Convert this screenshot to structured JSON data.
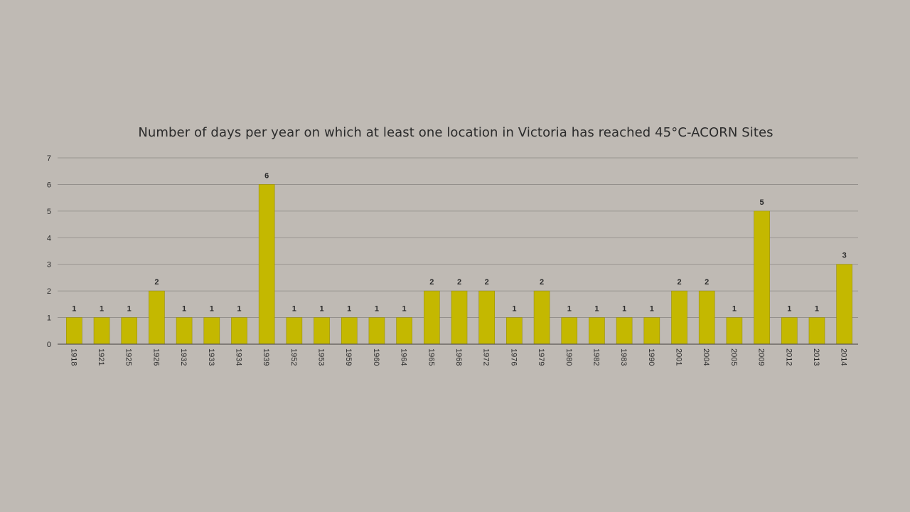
{
  "chart_data": {
    "type": "bar",
    "title": "Number of days per year on which at least one location in Victoria has reached 45°C-ACORN Sites",
    "xlabel": "",
    "ylabel": "",
    "ylim": [
      0,
      7
    ],
    "yticks": [
      "0",
      "1",
      "2",
      "3",
      "4",
      "5",
      "6",
      "7"
    ],
    "grid": true,
    "bar_color": "#c4b800",
    "bar_edge_color": "#9a9000",
    "categories": [
      "1918",
      "1921",
      "1925",
      "1926",
      "1932",
      "1933",
      "1934",
      "1939",
      "1952",
      "1953",
      "1959",
      "1960",
      "1964",
      "1965",
      "1968",
      "1972",
      "1976",
      "1979",
      "1980",
      "1982",
      "1983",
      "1990",
      "2001",
      "2004",
      "2005",
      "2009",
      "2012",
      "2013",
      "2014"
    ],
    "values": [
      1,
      1,
      1,
      2,
      1,
      1,
      1,
      6,
      1,
      1,
      1,
      1,
      1,
      2,
      2,
      2,
      1,
      2,
      1,
      1,
      1,
      1,
      2,
      2,
      1,
      5,
      1,
      1,
      3
    ],
    "data_labels": [
      "1",
      "1",
      "1",
      "2",
      "1",
      "1",
      "1",
      "6",
      "1",
      "1",
      "1",
      "1",
      "1",
      "2",
      "2",
      "2",
      "1",
      "2",
      "1",
      "1",
      "1",
      "1",
      "2",
      "2",
      "1",
      "5",
      "1",
      "1",
      "3"
    ]
  }
}
